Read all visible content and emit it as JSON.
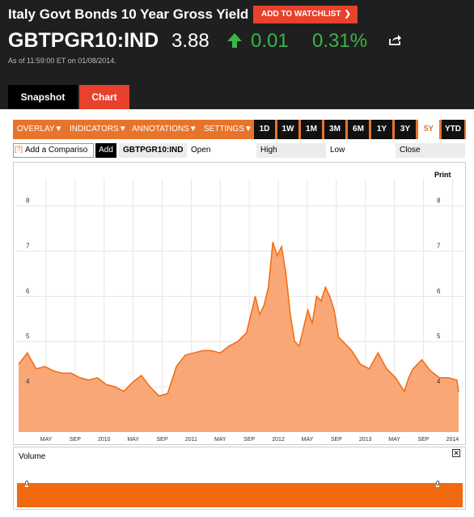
{
  "header": {
    "title": "Italy Govt Bonds 10 Year Gross Yield",
    "watchlist_label": "ADD TO WATCHLIST",
    "ticker": "GBTPGR10:IND",
    "price": "3.88",
    "change": "0.01",
    "change_pct": "0.31%",
    "as_of": "As of 11:59:00 ET on 01/08/2014.",
    "colors": {
      "accent": "#e8412c",
      "positive": "#39b54a"
    },
    "icons": {
      "up": "up-arrow-icon",
      "share": "share-icon"
    }
  },
  "tabs": [
    {
      "label": "Snapshot"
    },
    {
      "label": "Chart"
    }
  ],
  "toolbar": {
    "menus": [
      "OVERLAY",
      "INDICATORS",
      "ANNOTATIONS",
      "SETTINGS"
    ],
    "ranges": [
      "1D",
      "1W",
      "1M",
      "3M",
      "6M",
      "1Y",
      "3Y",
      "5Y",
      "YTD"
    ],
    "active_range": "5Y"
  },
  "compare": {
    "input_value": "Add a Compariso",
    "add_label": "Add",
    "symbol": "GBTPGR10:IND",
    "fields": [
      "Open",
      "High",
      "Low",
      "Close"
    ]
  },
  "chart": {
    "print_label": "Print",
    "volume_label": "Volume",
    "volume_zero": "0"
  },
  "chart_data": {
    "type": "area",
    "color": "#f26a10",
    "ylim": [
      3.0,
      8.6
    ],
    "y_ticks": [
      "4",
      "5",
      "6",
      "7",
      "8"
    ],
    "x_ticks": [
      "MAY",
      "SEP",
      "2010",
      "MAY",
      "SEP",
      "2011",
      "MAY",
      "SEP",
      "2012",
      "MAY",
      "SEP",
      "2013",
      "MAY",
      "SEP",
      "2014"
    ],
    "x": [
      2009.0,
      2009.1,
      2009.2,
      2009.3,
      2009.4,
      2009.5,
      2009.6,
      2009.7,
      2009.8,
      2009.9,
      2010.0,
      2010.1,
      2010.2,
      2010.3,
      2010.4,
      2010.5,
      2010.6,
      2010.7,
      2010.8,
      2010.9,
      2011.0,
      2011.1,
      2011.2,
      2011.3,
      2011.4,
      2011.5,
      2011.6,
      2011.7,
      2011.75,
      2011.8,
      2011.85,
      2011.9,
      2011.95,
      2012.0,
      2012.05,
      2012.1,
      2012.15,
      2012.2,
      2012.3,
      2012.35,
      2012.4,
      2012.45,
      2012.5,
      2012.55,
      2012.6,
      2012.65,
      2012.7,
      2012.8,
      2012.9,
      2013.0,
      2013.1,
      2013.2,
      2013.3,
      2013.4,
      2013.45,
      2013.5,
      2013.6,
      2013.7,
      2013.8,
      2013.9,
      2014.0,
      2014.02
    ],
    "y": [
      4.5,
      4.75,
      4.4,
      4.45,
      4.35,
      4.3,
      4.3,
      4.2,
      4.15,
      4.2,
      4.05,
      4.0,
      3.9,
      4.1,
      4.25,
      4.0,
      3.8,
      3.85,
      4.45,
      4.7,
      4.75,
      4.8,
      4.8,
      4.75,
      4.9,
      5.0,
      5.2,
      6.0,
      5.6,
      5.8,
      6.2,
      7.2,
      6.9,
      7.1,
      6.5,
      5.6,
      5.0,
      4.9,
      5.7,
      5.4,
      6.0,
      5.9,
      6.2,
      6.0,
      5.7,
      5.1,
      5.0,
      4.8,
      4.5,
      4.4,
      4.75,
      4.4,
      4.2,
      3.9,
      4.2,
      4.4,
      4.6,
      4.35,
      4.2,
      4.2,
      4.15,
      3.88
    ]
  }
}
